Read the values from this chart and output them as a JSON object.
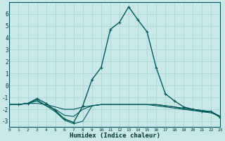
{
  "xlabel": "Humidex (Indice chaleur)",
  "background_color": "#c8e8e8",
  "grid_color": "#b0d4d4",
  "line_color": "#005858",
  "xlim": [
    0,
    23
  ],
  "ylim": [
    -3.5,
    7.0
  ],
  "xticks": [
    0,
    1,
    2,
    3,
    4,
    5,
    6,
    7,
    8,
    9,
    10,
    11,
    12,
    13,
    14,
    15,
    16,
    17,
    18,
    19,
    20,
    21,
    22,
    23
  ],
  "yticks": [
    -3,
    -2,
    -1,
    0,
    1,
    2,
    3,
    4,
    5,
    6
  ],
  "series": [
    {
      "x": [
        0,
        1,
        2,
        3,
        4,
        5,
        6,
        7,
        8,
        9,
        10,
        11,
        12,
        13,
        14,
        15,
        16,
        17,
        18,
        19,
        20,
        21,
        22,
        23
      ],
      "y": [
        -1.6,
        -1.6,
        -1.5,
        -1.1,
        -1.5,
        -2.1,
        -2.8,
        -3.1,
        -1.7,
        0.5,
        1.5,
        4.7,
        5.3,
        6.6,
        5.5,
        4.5,
        1.5,
        -0.7,
        -1.3,
        -1.8,
        -2.0,
        -2.2,
        -2.2,
        -2.7
      ],
      "color": "#005858",
      "linewidth": 1.0,
      "marker": "+",
      "markersize": 3.5
    },
    {
      "x": [
        0,
        1,
        2,
        3,
        4,
        5,
        6,
        7,
        8,
        9,
        10,
        11,
        12,
        13,
        14,
        15,
        16,
        17,
        18,
        19,
        20,
        21,
        22,
        23
      ],
      "y": [
        -1.6,
        -1.6,
        -1.5,
        -1.5,
        -1.6,
        -1.8,
        -2.0,
        -2.0,
        -1.8,
        -1.7,
        -1.6,
        -1.6,
        -1.6,
        -1.6,
        -1.6,
        -1.6,
        -1.6,
        -1.7,
        -1.8,
        -1.9,
        -2.0,
        -2.1,
        -2.2,
        -2.6
      ],
      "color": "#005858",
      "linewidth": 0.8,
      "marker": null,
      "markersize": 0
    },
    {
      "x": [
        0,
        1,
        2,
        3,
        4,
        5,
        6,
        7,
        8,
        9,
        10,
        11,
        12,
        13,
        14,
        15,
        16,
        17,
        18,
        19,
        20,
        21,
        22,
        23
      ],
      "y": [
        -1.6,
        -1.6,
        -1.5,
        -1.2,
        -1.7,
        -2.2,
        -2.9,
        -3.2,
        -3.0,
        -1.7,
        -1.6,
        -1.6,
        -1.6,
        -1.6,
        -1.6,
        -1.6,
        -1.6,
        -1.7,
        -1.8,
        -2.0,
        -2.0,
        -2.1,
        -2.2,
        -2.6
      ],
      "color": "#005858",
      "linewidth": 0.8,
      "marker": null,
      "markersize": 0
    },
    {
      "x": [
        0,
        1,
        2,
        3,
        4,
        5,
        6,
        7,
        8,
        9,
        10,
        11,
        12,
        13,
        14,
        15,
        16,
        17,
        18,
        19,
        20,
        21,
        22,
        23
      ],
      "y": [
        -1.6,
        -1.6,
        -1.5,
        -1.3,
        -1.7,
        -2.0,
        -2.5,
        -2.6,
        -2.0,
        -1.7,
        -1.6,
        -1.6,
        -1.6,
        -1.6,
        -1.6,
        -1.6,
        -1.7,
        -1.8,
        -1.9,
        -2.0,
        -2.1,
        -2.2,
        -2.3,
        -2.6
      ],
      "color": "#005858",
      "linewidth": 0.8,
      "marker": null,
      "markersize": 0
    }
  ]
}
